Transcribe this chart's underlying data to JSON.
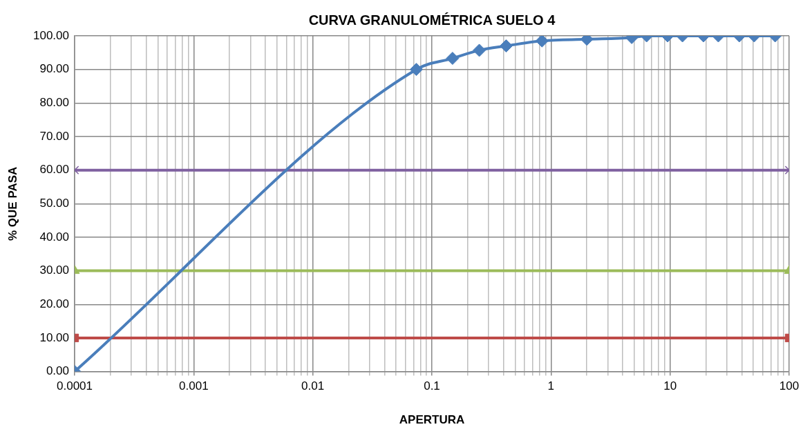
{
  "chart_data": {
    "type": "line",
    "title": "CURVA GRANULOMÉTRICA SUELO 4",
    "xlabel": "APERTURA",
    "ylabel": "% QUE PASA",
    "log": "x",
    "grid": true,
    "legend": false,
    "line_style": "solid",
    "xlim": [
      0.0001,
      100
    ],
    "ylim": [
      0,
      100
    ],
    "xticks": [
      {
        "value": 0.0001,
        "label": "0.0001"
      },
      {
        "value": 0.0002,
        "label": null
      },
      {
        "value": 0.0003,
        "label": null
      },
      {
        "value": 0.0004,
        "label": null
      },
      {
        "value": 0.0005,
        "label": null
      },
      {
        "value": 0.0006,
        "label": null
      },
      {
        "value": 0.0007,
        "label": null
      },
      {
        "value": 0.0008,
        "label": null
      },
      {
        "value": 0.0009,
        "label": null
      },
      {
        "value": 0.001,
        "label": "0.001"
      },
      {
        "value": 0.002,
        "label": null
      },
      {
        "value": 0.003,
        "label": null
      },
      {
        "value": 0.004,
        "label": null
      },
      {
        "value": 0.005,
        "label": null
      },
      {
        "value": 0.006,
        "label": null
      },
      {
        "value": 0.007,
        "label": null
      },
      {
        "value": 0.008,
        "label": null
      },
      {
        "value": 0.009,
        "label": null
      },
      {
        "value": 0.01,
        "label": "0.01"
      },
      {
        "value": 0.02,
        "label": null
      },
      {
        "value": 0.03,
        "label": null
      },
      {
        "value": 0.04,
        "label": null
      },
      {
        "value": 0.05,
        "label": null
      },
      {
        "value": 0.06,
        "label": null
      },
      {
        "value": 0.07,
        "label": null
      },
      {
        "value": 0.08,
        "label": null
      },
      {
        "value": 0.09,
        "label": null
      },
      {
        "value": 0.1,
        "label": "0.1"
      },
      {
        "value": 0.2,
        "label": null
      },
      {
        "value": 0.3,
        "label": null
      },
      {
        "value": 0.4,
        "label": null
      },
      {
        "value": 0.5,
        "label": null
      },
      {
        "value": 0.6,
        "label": null
      },
      {
        "value": 0.7,
        "label": null
      },
      {
        "value": 0.8,
        "label": null
      },
      {
        "value": 0.9,
        "label": null
      },
      {
        "value": 1,
        "label": "1"
      },
      {
        "value": 2,
        "label": null
      },
      {
        "value": 3,
        "label": null
      },
      {
        "value": 4,
        "label": null
      },
      {
        "value": 5,
        "label": null
      },
      {
        "value": 6,
        "label": null
      },
      {
        "value": 7,
        "label": null
      },
      {
        "value": 8,
        "label": null
      },
      {
        "value": 9,
        "label": null
      },
      {
        "value": 10,
        "label": "10"
      },
      {
        "value": 20,
        "label": null
      },
      {
        "value": 30,
        "label": null
      },
      {
        "value": 40,
        "label": null
      },
      {
        "value": 50,
        "label": null
      },
      {
        "value": 60,
        "label": null
      },
      {
        "value": 70,
        "label": null
      },
      {
        "value": 80,
        "label": null
      },
      {
        "value": 90,
        "label": null
      },
      {
        "value": 100,
        "label": "100"
      }
    ],
    "yticks": [
      {
        "value": 0,
        "label": "0.00"
      },
      {
        "value": 10,
        "label": "10.00"
      },
      {
        "value": 20,
        "label": "20.00"
      },
      {
        "value": 30,
        "label": "30.00"
      },
      {
        "value": 40,
        "label": "40.00"
      },
      {
        "value": 50,
        "label": "50.00"
      },
      {
        "value": 60,
        "label": "60.00"
      },
      {
        "value": 70,
        "label": "70.00"
      },
      {
        "value": 80,
        "label": "80.00"
      },
      {
        "value": 90,
        "label": "90.00"
      },
      {
        "value": 100,
        "label": "100.00"
      }
    ],
    "series": [
      {
        "color": "#4a7ebb",
        "marker": "diamond",
        "x": [
          76.2,
          50.8,
          38.1,
          25.4,
          19.05,
          12.7,
          9.525,
          6.35,
          4.76,
          2.0,
          0.84,
          0.42,
          0.25,
          0.149,
          0.074,
          0.0001
        ],
        "values": [
          100,
          100,
          100,
          100,
          100,
          100,
          100,
          100,
          99.5,
          99,
          98.5,
          97,
          95.7,
          93.3,
          90,
          0
        ]
      },
      {
        "color": "#7f60a0",
        "marker": "cross",
        "x": [
          0.0001,
          100
        ],
        "values": [
          60,
          60
        ]
      },
      {
        "color": "#9bbb59",
        "marker": "triangle",
        "x": [
          0.0001,
          100
        ],
        "values": [
          30,
          30
        ]
      },
      {
        "color": "#be4b48",
        "marker": "square",
        "x": [
          0.0001,
          100
        ],
        "values": [
          10,
          10
        ]
      }
    ]
  }
}
